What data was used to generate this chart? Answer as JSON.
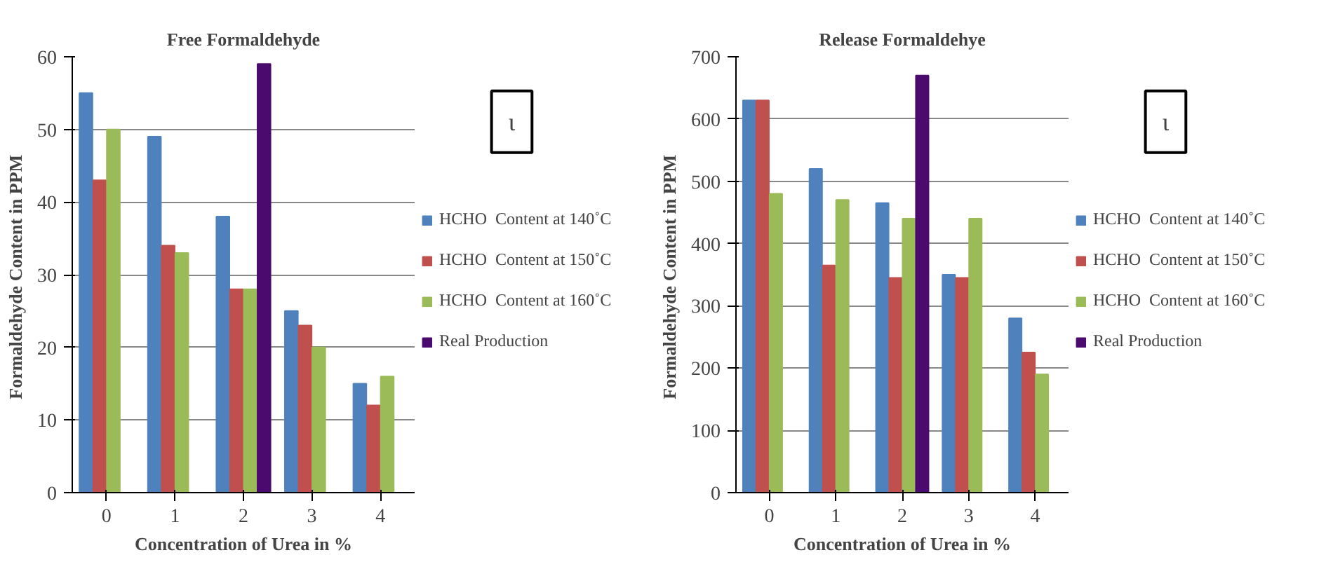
{
  "chart_data": [
    {
      "type": "bar",
      "title": "Free Formaldehyde",
      "xlabel": "Concentration of Urea in %",
      "ylabel": "Formaldehyde  Content in PPM",
      "categories": [
        "0",
        "1",
        "2",
        "3",
        "4"
      ],
      "series": [
        {
          "name": "HCHO  Content at 140˚C",
          "color": "#4f81bd",
          "values": [
            55,
            49,
            38,
            25,
            15
          ]
        },
        {
          "name": "HCHO  Content at 150˚C",
          "color": "#c0504d",
          "values": [
            43,
            34,
            28,
            23,
            12
          ]
        },
        {
          "name": "HCHO  Content at 160˚C",
          "color": "#9bbb59",
          "values": [
            50,
            33,
            28,
            20,
            16
          ]
        },
        {
          "name": "Real Production",
          "color": "#4b0a6e",
          "values": [
            null,
            null,
            59,
            null,
            null
          ]
        }
      ],
      "ylim": [
        0,
        60
      ],
      "yticks": [
        0,
        10,
        20,
        30,
        40,
        50,
        60
      ],
      "grid": "y",
      "legend": "right",
      "annotations": [
        "ɩ"
      ]
    },
    {
      "type": "bar",
      "title": "Release Formaldehye",
      "xlabel": "Concentration of Urea in %",
      "ylabel": "Formaldehyde  Content in PPM",
      "categories": [
        "0",
        "1",
        "2",
        "3",
        "4"
      ],
      "series": [
        {
          "name": "HCHO  Content at 140˚C",
          "color": "#4f81bd",
          "values": [
            630,
            520,
            465,
            350,
            280
          ]
        },
        {
          "name": "HCHO  Content at 150˚C",
          "color": "#c0504d",
          "values": [
            630,
            365,
            345,
            345,
            225
          ]
        },
        {
          "name": "HCHO  Content at 160˚C",
          "color": "#9bbb59",
          "values": [
            480,
            470,
            440,
            440,
            190
          ]
        },
        {
          "name": "Real Production",
          "color": "#4b0a6e",
          "values": [
            null,
            null,
            670,
            null,
            null
          ]
        }
      ],
      "ylim": [
        0,
        700
      ],
      "yticks": [
        0,
        100,
        200,
        300,
        400,
        500,
        600,
        700
      ],
      "grid": "y",
      "legend": "right",
      "annotations": [
        "ɩ"
      ]
    }
  ]
}
